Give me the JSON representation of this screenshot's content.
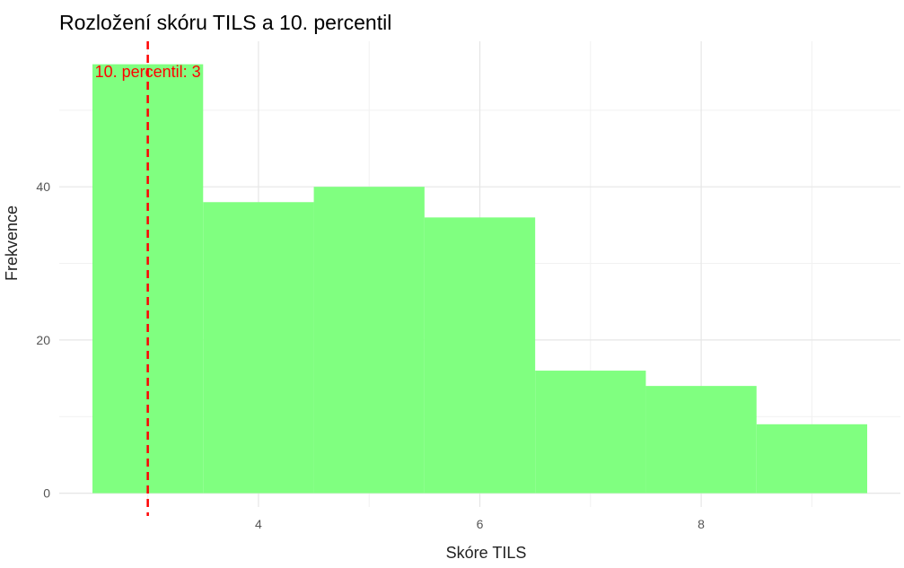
{
  "chart_data": {
    "type": "bar",
    "subtype": "histogram",
    "title": "Rozložení skóru TILS a 10. percentil",
    "xlabel": "Skóre TILS",
    "ylabel": "Frekvence",
    "bins": [
      {
        "x0": 2.5,
        "x1": 3.5,
        "count": 56
      },
      {
        "x0": 3.5,
        "x1": 4.5,
        "count": 38
      },
      {
        "x0": 4.5,
        "x1": 5.5,
        "count": 40
      },
      {
        "x0": 5.5,
        "x1": 6.5,
        "count": 36
      },
      {
        "x0": 6.5,
        "x1": 7.5,
        "count": 16
      },
      {
        "x0": 7.5,
        "x1": 8.5,
        "count": 14
      },
      {
        "x0": 8.5,
        "x1": 9.5,
        "count": 9
      }
    ],
    "xlim": [
      2.2,
      9.8
    ],
    "ylim": [
      -1.8,
      59
    ],
    "xticks": [
      4,
      6,
      8
    ],
    "yticks": [
      0,
      20,
      40
    ],
    "bar_color": "#80FF80",
    "vline": {
      "x": 3,
      "color": "#FF0000",
      "style": "dashed",
      "label": "10. percentil: 3"
    },
    "grid": true,
    "legend": "none"
  }
}
